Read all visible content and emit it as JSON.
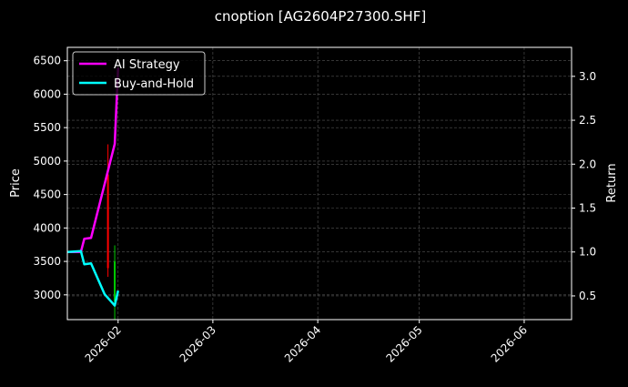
{
  "chart_data": {
    "type": "line",
    "title": "cnoption [AG2604P27300.SHF]",
    "ylabel": "Price",
    "y2label": "Return",
    "xlim": [
      "2026-01-17",
      "2026-06-15"
    ],
    "ylim": [
      2630,
      6700
    ],
    "y2lim": [
      0.23,
      3.33
    ],
    "x_ticks": [
      "2026-02",
      "2026-03",
      "2026-04",
      "2026-05",
      "2026-06"
    ],
    "x_tick_dates": [
      "2026-02-01",
      "2026-03-01",
      "2026-04-01",
      "2026-05-01",
      "2026-06-01"
    ],
    "y_ticks": [
      3000,
      3500,
      4000,
      4500,
      5000,
      5500,
      6000,
      6500
    ],
    "y2_ticks": [
      "0.5",
      "1.0",
      "1.5",
      "2.0",
      "2.5",
      "3.0"
    ],
    "grid": true,
    "legend_position": "top-left",
    "background": "#000000",
    "series": [
      {
        "name": "AI Strategy",
        "axis": "right",
        "color": "#ff00ff",
        "x": [
          "2026-01-17",
          "2026-01-21",
          "2026-01-22",
          "2026-01-24",
          "2026-01-31",
          "2026-02-01"
        ],
        "values": [
          1.0,
          1.0,
          1.15,
          1.16,
          2.23,
          3.1
        ]
      },
      {
        "name": "Buy-and-Hold",
        "axis": "right",
        "color": "#00ffff",
        "x": [
          "2026-01-17",
          "2026-01-21",
          "2026-01-22",
          "2026-01-24",
          "2026-01-28",
          "2026-01-31",
          "2026-02-01"
        ],
        "values": [
          1.0,
          1.01,
          0.86,
          0.87,
          0.52,
          0.39,
          0.56
        ]
      }
    ],
    "candles": [
      {
        "date": "2026-01-29",
        "open": 4800,
        "high": 5250,
        "low": 3270,
        "close": 3400,
        "color": "#ff0000"
      },
      {
        "date": "2026-01-31",
        "open": 2900,
        "high": 3740,
        "low": 2630,
        "close": 3500,
        "color": "#00cc00"
      }
    ]
  }
}
